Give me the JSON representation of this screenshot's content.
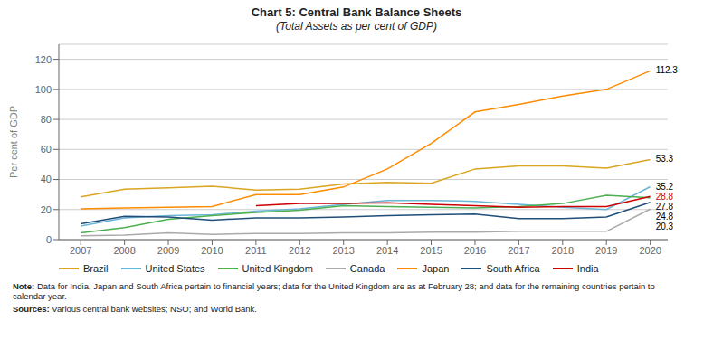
{
  "chart_data": {
    "type": "line",
    "title": "Chart 5: Central Bank Balance Sheets",
    "subtitle": "(Total Assets as per cent of GDP)",
    "y_label": "Per cent of GDP",
    "x": [
      2007,
      2008,
      2009,
      2010,
      2011,
      2012,
      2013,
      2014,
      2015,
      2016,
      2017,
      2018,
      2019,
      2020
    ],
    "xlim": [
      2006.5,
      2020.4
    ],
    "xticks": [
      2007,
      2008,
      2009,
      2010,
      2011,
      2012,
      2013,
      2014,
      2015,
      2016,
      2017,
      2018,
      2019,
      2020
    ],
    "ylim": [
      0,
      130
    ],
    "yticks": [
      0,
      20,
      40,
      60,
      80,
      100,
      120
    ],
    "grid": true,
    "legend": "bottom",
    "series": [
      {
        "name": "Brazil",
        "color": "#DAA520",
        "values": [
          28.5,
          33.5,
          34.5,
          35.5,
          33.0,
          33.5,
          37.0,
          38.0,
          37.5,
          47.0,
          49.0,
          49.0,
          47.5,
          53.3
        ]
      },
      {
        "name": "United States",
        "color": "#6BB5D6",
        "values": [
          9.0,
          14.5,
          16.0,
          16.5,
          19.0,
          20.5,
          23.5,
          26.0,
          26.0,
          25.5,
          23.5,
          21.5,
          20.0,
          35.2
        ]
      },
      {
        "name": "United Kingdom",
        "color": "#4CAF50",
        "values": [
          4.5,
          8.0,
          13.5,
          16.0,
          18.0,
          19.5,
          22.5,
          22.0,
          21.5,
          21.0,
          22.0,
          24.0,
          29.5,
          27.8
        ]
      },
      {
        "name": "Canada",
        "color": "#AAAAAA",
        "values": [
          2.5,
          3.0,
          4.5,
          3.5,
          4.0,
          4.0,
          4.5,
          4.5,
          5.0,
          5.0,
          5.5,
          5.5,
          5.5,
          20.3
        ]
      },
      {
        "name": "Japan",
        "color": "#FF8C00",
        "values": [
          20.5,
          21.0,
          21.5,
          22.0,
          30.0,
          30.0,
          35.0,
          47.0,
          64.0,
          85.0,
          90.0,
          95.5,
          100.0,
          112.3
        ]
      },
      {
        "name": "South Africa",
        "color": "#1F4E79",
        "values": [
          10.5,
          15.5,
          15.0,
          13.0,
          14.5,
          14.5,
          15.0,
          16.0,
          16.5,
          17.0,
          14.0,
          14.0,
          15.0,
          24.8
        ]
      },
      {
        "name": "India",
        "color": "#CC0000",
        "values": [
          null,
          null,
          null,
          null,
          22.5,
          24.0,
          24.0,
          24.5,
          23.5,
          22.5,
          21.5,
          22.0,
          22.0,
          28.8
        ]
      }
    ],
    "annotations": [
      {
        "text": "112.3",
        "x": 2020,
        "y": 112.3,
        "color": "#000000"
      },
      {
        "text": "53.3",
        "x": 2020,
        "y": 53.3,
        "color": "#000000"
      },
      {
        "text": "35.2",
        "x": 2020,
        "y": 35.2,
        "color": "#000000"
      },
      {
        "text": "28.8",
        "x": 2020,
        "y": 28.8,
        "color": "#CC0000"
      },
      {
        "text": "27.8",
        "x": 2020,
        "y": 27.8,
        "color": "#000000"
      },
      {
        "text": "24.8",
        "x": 2020,
        "y": 24.8,
        "color": "#000000"
      },
      {
        "text": "20.3",
        "x": 2020,
        "y": 20.3,
        "color": "#000000"
      }
    ],
    "notes": [
      {
        "label": "Note:",
        "text": "Data for India, Japan and South Africa pertain to financial years; data for the United Kingdom are as at February 28; and data for the remaining countries pertain to\ncalendar year."
      },
      {
        "label": "Sources:",
        "text": "Various central bank websites; NSO; and World Bank."
      }
    ]
  }
}
